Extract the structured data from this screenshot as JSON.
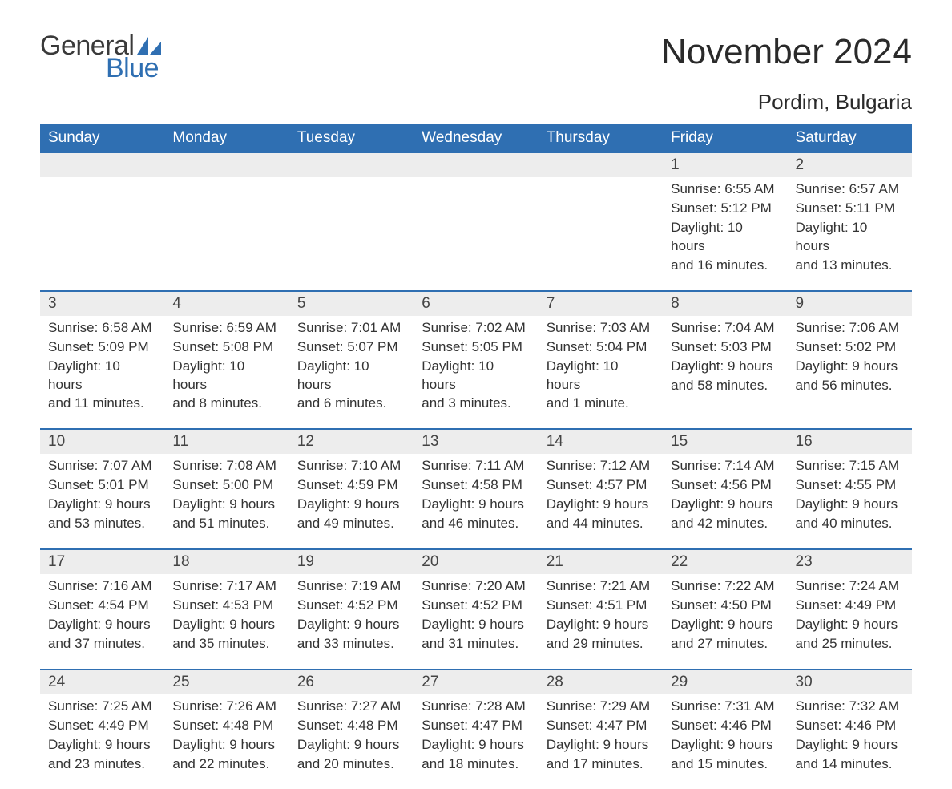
{
  "brand": {
    "text1": "General",
    "text2": "Blue",
    "icon_color": "#2f6fb2"
  },
  "title": "November 2024",
  "location": "Pordim, Bulgaria",
  "colors": {
    "header_bg": "#2f6fb2",
    "header_text": "#ffffff",
    "daynum_bg": "#ededed",
    "row_border": "#2f6fb2",
    "body_text": "#333333",
    "background": "#ffffff"
  },
  "fonts": {
    "title_pt": 44,
    "location_pt": 26,
    "header_pt": 19,
    "daynum_pt": 19,
    "detail_pt": 17
  },
  "weekdays": [
    "Sunday",
    "Monday",
    "Tuesday",
    "Wednesday",
    "Thursday",
    "Friday",
    "Saturday"
  ],
  "weeks": [
    [
      null,
      null,
      null,
      null,
      null,
      {
        "d": "1",
        "sr": "Sunrise: 6:55 AM",
        "ss": "Sunset: 5:12 PM",
        "dl1": "Daylight: 10 hours",
        "dl2": "and 16 minutes."
      },
      {
        "d": "2",
        "sr": "Sunrise: 6:57 AM",
        "ss": "Sunset: 5:11 PM",
        "dl1": "Daylight: 10 hours",
        "dl2": "and 13 minutes."
      }
    ],
    [
      {
        "d": "3",
        "sr": "Sunrise: 6:58 AM",
        "ss": "Sunset: 5:09 PM",
        "dl1": "Daylight: 10 hours",
        "dl2": "and 11 minutes."
      },
      {
        "d": "4",
        "sr": "Sunrise: 6:59 AM",
        "ss": "Sunset: 5:08 PM",
        "dl1": "Daylight: 10 hours",
        "dl2": "and 8 minutes."
      },
      {
        "d": "5",
        "sr": "Sunrise: 7:01 AM",
        "ss": "Sunset: 5:07 PM",
        "dl1": "Daylight: 10 hours",
        "dl2": "and 6 minutes."
      },
      {
        "d": "6",
        "sr": "Sunrise: 7:02 AM",
        "ss": "Sunset: 5:05 PM",
        "dl1": "Daylight: 10 hours",
        "dl2": "and 3 minutes."
      },
      {
        "d": "7",
        "sr": "Sunrise: 7:03 AM",
        "ss": "Sunset: 5:04 PM",
        "dl1": "Daylight: 10 hours",
        "dl2": "and 1 minute."
      },
      {
        "d": "8",
        "sr": "Sunrise: 7:04 AM",
        "ss": "Sunset: 5:03 PM",
        "dl1": "Daylight: 9 hours",
        "dl2": "and 58 minutes."
      },
      {
        "d": "9",
        "sr": "Sunrise: 7:06 AM",
        "ss": "Sunset: 5:02 PM",
        "dl1": "Daylight: 9 hours",
        "dl2": "and 56 minutes."
      }
    ],
    [
      {
        "d": "10",
        "sr": "Sunrise: 7:07 AM",
        "ss": "Sunset: 5:01 PM",
        "dl1": "Daylight: 9 hours",
        "dl2": "and 53 minutes."
      },
      {
        "d": "11",
        "sr": "Sunrise: 7:08 AM",
        "ss": "Sunset: 5:00 PM",
        "dl1": "Daylight: 9 hours",
        "dl2": "and 51 minutes."
      },
      {
        "d": "12",
        "sr": "Sunrise: 7:10 AM",
        "ss": "Sunset: 4:59 PM",
        "dl1": "Daylight: 9 hours",
        "dl2": "and 49 minutes."
      },
      {
        "d": "13",
        "sr": "Sunrise: 7:11 AM",
        "ss": "Sunset: 4:58 PM",
        "dl1": "Daylight: 9 hours",
        "dl2": "and 46 minutes."
      },
      {
        "d": "14",
        "sr": "Sunrise: 7:12 AM",
        "ss": "Sunset: 4:57 PM",
        "dl1": "Daylight: 9 hours",
        "dl2": "and 44 minutes."
      },
      {
        "d": "15",
        "sr": "Sunrise: 7:14 AM",
        "ss": "Sunset: 4:56 PM",
        "dl1": "Daylight: 9 hours",
        "dl2": "and 42 minutes."
      },
      {
        "d": "16",
        "sr": "Sunrise: 7:15 AM",
        "ss": "Sunset: 4:55 PM",
        "dl1": "Daylight: 9 hours",
        "dl2": "and 40 minutes."
      }
    ],
    [
      {
        "d": "17",
        "sr": "Sunrise: 7:16 AM",
        "ss": "Sunset: 4:54 PM",
        "dl1": "Daylight: 9 hours",
        "dl2": "and 37 minutes."
      },
      {
        "d": "18",
        "sr": "Sunrise: 7:17 AM",
        "ss": "Sunset: 4:53 PM",
        "dl1": "Daylight: 9 hours",
        "dl2": "and 35 minutes."
      },
      {
        "d": "19",
        "sr": "Sunrise: 7:19 AM",
        "ss": "Sunset: 4:52 PM",
        "dl1": "Daylight: 9 hours",
        "dl2": "and 33 minutes."
      },
      {
        "d": "20",
        "sr": "Sunrise: 7:20 AM",
        "ss": "Sunset: 4:52 PM",
        "dl1": "Daylight: 9 hours",
        "dl2": "and 31 minutes."
      },
      {
        "d": "21",
        "sr": "Sunrise: 7:21 AM",
        "ss": "Sunset: 4:51 PM",
        "dl1": "Daylight: 9 hours",
        "dl2": "and 29 minutes."
      },
      {
        "d": "22",
        "sr": "Sunrise: 7:22 AM",
        "ss": "Sunset: 4:50 PM",
        "dl1": "Daylight: 9 hours",
        "dl2": "and 27 minutes."
      },
      {
        "d": "23",
        "sr": "Sunrise: 7:24 AM",
        "ss": "Sunset: 4:49 PM",
        "dl1": "Daylight: 9 hours",
        "dl2": "and 25 minutes."
      }
    ],
    [
      {
        "d": "24",
        "sr": "Sunrise: 7:25 AM",
        "ss": "Sunset: 4:49 PM",
        "dl1": "Daylight: 9 hours",
        "dl2": "and 23 minutes."
      },
      {
        "d": "25",
        "sr": "Sunrise: 7:26 AM",
        "ss": "Sunset: 4:48 PM",
        "dl1": "Daylight: 9 hours",
        "dl2": "and 22 minutes."
      },
      {
        "d": "26",
        "sr": "Sunrise: 7:27 AM",
        "ss": "Sunset: 4:48 PM",
        "dl1": "Daylight: 9 hours",
        "dl2": "and 20 minutes."
      },
      {
        "d": "27",
        "sr": "Sunrise: 7:28 AM",
        "ss": "Sunset: 4:47 PM",
        "dl1": "Daylight: 9 hours",
        "dl2": "and 18 minutes."
      },
      {
        "d": "28",
        "sr": "Sunrise: 7:29 AM",
        "ss": "Sunset: 4:47 PM",
        "dl1": "Daylight: 9 hours",
        "dl2": "and 17 minutes."
      },
      {
        "d": "29",
        "sr": "Sunrise: 7:31 AM",
        "ss": "Sunset: 4:46 PM",
        "dl1": "Daylight: 9 hours",
        "dl2": "and 15 minutes."
      },
      {
        "d": "30",
        "sr": "Sunrise: 7:32 AM",
        "ss": "Sunset: 4:46 PM",
        "dl1": "Daylight: 9 hours",
        "dl2": "and 14 minutes."
      }
    ]
  ]
}
